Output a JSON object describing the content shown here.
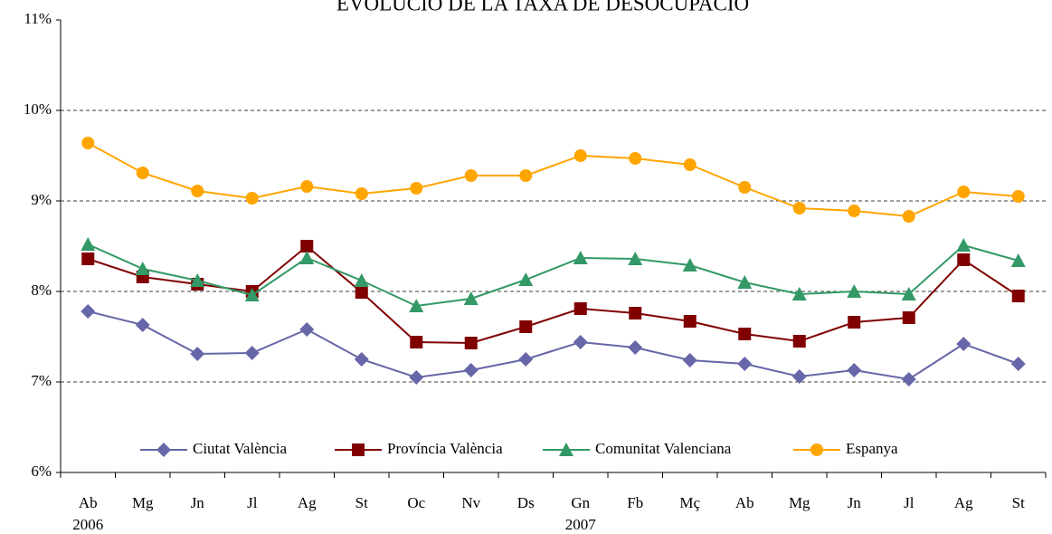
{
  "chart_data": {
    "type": "line",
    "title": "EVOLUCIÓ DE LA TAXA DE DESOCUPACIÓ",
    "categories": [
      "Ab",
      "Mg",
      "Jn",
      "Jl",
      "Ag",
      "St",
      "Oc",
      "Nv",
      "Ds",
      "Gn",
      "Fb",
      "Mç",
      "Ab",
      "Mg",
      "Jn",
      "Jl",
      "Ag",
      "St"
    ],
    "years": [
      "2006",
      null,
      null,
      null,
      null,
      null,
      null,
      null,
      null,
      "2007",
      null,
      null,
      null,
      null,
      null,
      null,
      null,
      null
    ],
    "series": [
      {
        "name": "Ciutat València",
        "color": "#6666a8",
        "marker": "diamond",
        "values": [
          7.78,
          7.63,
          7.31,
          7.32,
          7.58,
          7.25,
          7.05,
          7.13,
          7.25,
          7.44,
          7.38,
          7.24,
          7.2,
          7.06,
          7.13,
          7.03,
          7.42,
          7.2
        ]
      },
      {
        "name": "Província València",
        "color": "#800000",
        "marker": "square",
        "values": [
          8.36,
          8.16,
          8.08,
          8.0,
          8.5,
          7.99,
          7.44,
          7.43,
          7.61,
          7.81,
          7.76,
          7.67,
          7.53,
          7.45,
          7.66,
          7.71,
          8.35,
          7.95
        ]
      },
      {
        "name": "Comunitat Valenciana",
        "color": "#339966",
        "marker": "triangle",
        "values": [
          8.52,
          8.25,
          8.12,
          7.96,
          8.37,
          8.12,
          7.84,
          7.92,
          8.13,
          8.37,
          8.36,
          8.29,
          8.1,
          7.97,
          8.0,
          7.97,
          8.51,
          8.34
        ]
      },
      {
        "name": "Espanya",
        "color": "#ffa500",
        "marker": "circle",
        "values": [
          9.64,
          9.31,
          9.11,
          9.03,
          9.16,
          9.08,
          9.14,
          9.28,
          9.28,
          9.5,
          9.47,
          9.4,
          9.15,
          8.92,
          8.89,
          8.83,
          9.1,
          9.05
        ]
      }
    ],
    "ylim": [
      6,
      11
    ],
    "yticks": [
      {
        "value": 6,
        "label": "6%"
      },
      {
        "value": 7,
        "label": "7%"
      },
      {
        "value": 8,
        "label": "8%"
      },
      {
        "value": 9,
        "label": "9%"
      },
      {
        "value": 10,
        "label": "10%"
      },
      {
        "value": 11,
        "label": "11%"
      }
    ],
    "grid": true,
    "legend": "bottom"
  }
}
